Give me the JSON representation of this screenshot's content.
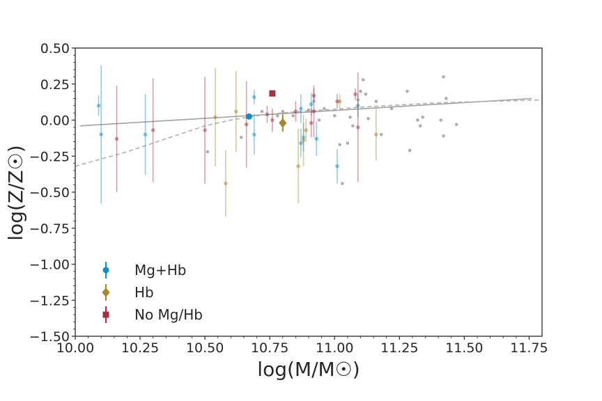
{
  "chart_data": {
    "type": "scatter",
    "title": "",
    "xlabel": "log(M/M☉)",
    "ylabel": "log(Z/Z☉)",
    "xlim": [
      10.0,
      11.8
    ],
    "ylim": [
      -1.5,
      0.5
    ],
    "xticks": [
      "10.00",
      "10.25",
      "10.50",
      "10.75",
      "11.00",
      "11.25",
      "11.50",
      "11.75"
    ],
    "yticks": [
      "0.50",
      "0.25",
      "0.00",
      "−0.25",
      "−0.50",
      "−0.75",
      "−1.00",
      "−1.25",
      "−1.50"
    ],
    "grid": false,
    "legend_position": "lower-left",
    "colors": {
      "mg_hb": "#0e90c6",
      "hb": "#a8862e",
      "no_mg_hb": "#a4313f",
      "comparison": "#8c8c8c"
    },
    "legend": [
      {
        "label": "Mg+Hb",
        "marker": "circle",
        "color": "#0e90c6"
      },
      {
        "label": "Hb",
        "marker": "diamond",
        "color": "#a8862e"
      },
      {
        "label": "No Mg/Hb",
        "marker": "square",
        "color": "#a4313f"
      }
    ],
    "series": [
      {
        "name": "Mg+Hb",
        "color": "#0e90c6",
        "points": [
          {
            "x": 10.09,
            "y": 0.1,
            "err": 0.07
          },
          {
            "x": 10.1,
            "y": -0.1,
            "err": 0.48
          },
          {
            "x": 10.27,
            "y": -0.1,
            "err": 0.28
          },
          {
            "x": 10.69,
            "y": 0.16,
            "err": 0.05
          },
          {
            "x": 10.69,
            "y": -0.1,
            "err": 0.14
          },
          {
            "x": 10.87,
            "y": 0.08,
            "err": 0.1
          },
          {
            "x": 10.87,
            "y": -0.16,
            "err": 0.1
          },
          {
            "x": 10.88,
            "y": -0.12,
            "err": 0.1
          },
          {
            "x": 10.91,
            "y": 0.11,
            "err": 0.08
          },
          {
            "x": 10.93,
            "y": -0.13,
            "err": 0.12
          },
          {
            "x": 11.01,
            "y": -0.32,
            "err": 0.12
          },
          {
            "x": 11.09,
            "y": 0.1,
            "err": 0.08
          }
        ]
      },
      {
        "name": "Hb",
        "color": "#a8862e",
        "points": [
          {
            "x": 10.54,
            "y": 0.02,
            "err": 0.34
          },
          {
            "x": 10.58,
            "y": -0.44,
            "err": 0.23
          },
          {
            "x": 10.62,
            "y": 0.06,
            "err": 0.28
          },
          {
            "x": 10.86,
            "y": -0.32,
            "err": 0.26
          },
          {
            "x": 10.88,
            "y": -0.14,
            "err": 0.18
          },
          {
            "x": 10.89,
            "y": -0.07,
            "err": 0.08
          },
          {
            "x": 11.02,
            "y": 0.13,
            "err": 0.05
          },
          {
            "x": 11.16,
            "y": -0.1,
            "err": 0.18
          }
        ]
      },
      {
        "name": "No Mg/Hb",
        "color": "#a4313f",
        "points": [
          {
            "x": 10.16,
            "y": -0.13,
            "err": 0.37
          },
          {
            "x": 10.3,
            "y": -0.07,
            "err": 0.36
          },
          {
            "x": 10.5,
            "y": -0.07,
            "err": 0.37
          },
          {
            "x": 10.66,
            "y": -0.03,
            "err": 0.3
          },
          {
            "x": 10.74,
            "y": 0.04,
            "err": 0.06
          },
          {
            "x": 10.76,
            "y": 0.0,
            "err": 0.08
          },
          {
            "x": 10.85,
            "y": 0.06,
            "err": 0.07
          },
          {
            "x": 10.91,
            "y": -0.02,
            "err": 0.1
          },
          {
            "x": 10.92,
            "y": 0.17,
            "err": 0.05
          },
          {
            "x": 10.92,
            "y": 0.06,
            "err": 0.18
          },
          {
            "x": 11.01,
            "y": 0.13,
            "err": 0.05
          },
          {
            "x": 11.08,
            "y": 0.18,
            "err": 0.04
          },
          {
            "x": 11.09,
            "y": -0.05,
            "err": 0.38
          }
        ]
      },
      {
        "name": "",
        "color": "#8c8c8c",
        "points": [
          {
            "x": 10.51,
            "y": -0.22
          },
          {
            "x": 10.64,
            "y": -0.12
          },
          {
            "x": 10.72,
            "y": 0.06
          },
          {
            "x": 10.78,
            "y": 0.03
          },
          {
            "x": 10.8,
            "y": 0.06
          },
          {
            "x": 10.84,
            "y": 0.03
          },
          {
            "x": 10.9,
            "y": 0.07
          },
          {
            "x": 10.92,
            "y": 0.13
          },
          {
            "x": 10.94,
            "y": 0.0
          },
          {
            "x": 10.96,
            "y": 0.08
          },
          {
            "x": 11.0,
            "y": 0.03
          },
          {
            "x": 11.02,
            "y": -0.17
          },
          {
            "x": 11.03,
            "y": -0.44
          },
          {
            "x": 11.05,
            "y": -0.16
          },
          {
            "x": 11.06,
            "y": 0.02
          },
          {
            "x": 11.07,
            "y": -0.04
          },
          {
            "x": 11.09,
            "y": 0.14
          },
          {
            "x": 11.1,
            "y": 0.2
          },
          {
            "x": 11.11,
            "y": 0.28
          },
          {
            "x": 11.12,
            "y": 0.18
          },
          {
            "x": 11.13,
            "y": 0.01
          },
          {
            "x": 11.16,
            "y": 0.13
          },
          {
            "x": 11.18,
            "y": -0.1
          },
          {
            "x": 11.22,
            "y": 0.08
          },
          {
            "x": 11.28,
            "y": 0.2
          },
          {
            "x": 11.29,
            "y": -0.21
          },
          {
            "x": 11.32,
            "y": 0.0
          },
          {
            "x": 11.33,
            "y": -0.04
          },
          {
            "x": 11.34,
            "y": 0.02
          },
          {
            "x": 11.41,
            "y": 0.0
          },
          {
            "x": 11.42,
            "y": 0.3
          },
          {
            "x": 11.42,
            "y": -0.11
          },
          {
            "x": 11.43,
            "y": 0.15
          },
          {
            "x": 11.47,
            "y": -0.03
          }
        ]
      }
    ],
    "highlighted": [
      {
        "name": "Mg+Hb",
        "x": 10.67,
        "y": 0.025,
        "marker": "circle",
        "color": "#0e90c6"
      },
      {
        "name": "Hb",
        "x": 10.8,
        "y": -0.02,
        "err": 0.06,
        "marker": "diamond",
        "color": "#a8862e"
      },
      {
        "name": "No Mg/Hb",
        "x": 10.76,
        "y": 0.185,
        "marker": "square",
        "color": "#a4313f"
      }
    ],
    "lines": [
      {
        "style": "solid",
        "color": "#a0a0a0",
        "x": [
          10.02,
          11.76
        ],
        "y": [
          -0.04,
          0.15
        ]
      },
      {
        "style": "dashed",
        "color": "#b0b0b0",
        "x": [
          10.0,
          10.1,
          10.2,
          10.3,
          10.4,
          10.5,
          10.6,
          10.7,
          10.8,
          10.9,
          11.0,
          11.1,
          11.2,
          11.3,
          11.4,
          11.5,
          11.6,
          11.7,
          11.8
        ],
        "y": [
          -0.32,
          -0.27,
          -0.22,
          -0.16,
          -0.1,
          -0.04,
          0.0,
          0.03,
          0.05,
          0.065,
          0.075,
          0.09,
          0.1,
          0.11,
          0.12,
          0.125,
          0.13,
          0.135,
          0.14
        ]
      }
    ]
  }
}
